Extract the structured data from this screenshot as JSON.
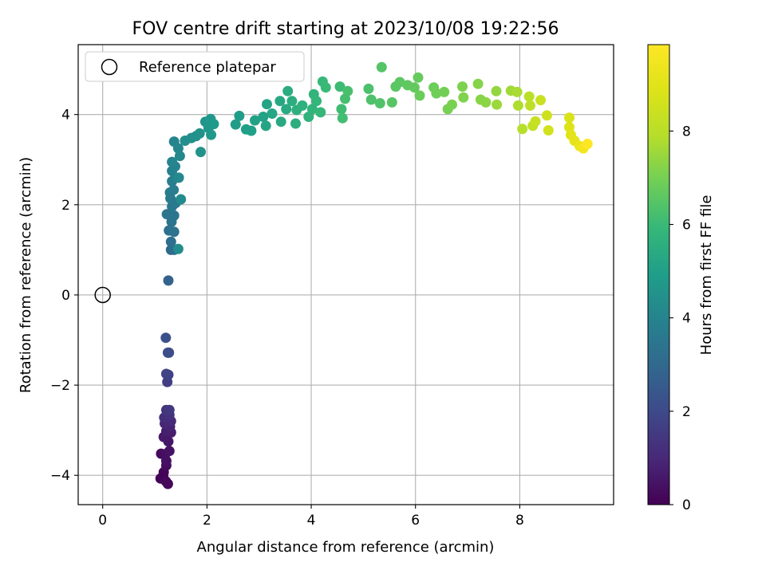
{
  "chart_data": {
    "type": "scatter",
    "title": "FOV centre drift starting at 2023/10/08 19:22:56",
    "xlabel": "Angular distance from reference (arcmin)",
    "ylabel": "Rotation from reference (arcmin)",
    "xlim": [
      -0.47,
      9.8
    ],
    "ylim": [
      -4.65,
      5.55
    ],
    "x_ticks": [
      0,
      2,
      4,
      6,
      8
    ],
    "y_ticks": [
      -4,
      -2,
      0,
      2,
      4
    ],
    "x_tick_labels": [
      "0",
      "2",
      "4",
      "6",
      "8"
    ],
    "y_tick_labels": [
      "−4",
      "−2",
      "0",
      "2",
      "4"
    ],
    "grid": true,
    "legend_position": "top-left",
    "colormap": "viridis",
    "colorbar": {
      "label": "Hours from first FF file",
      "range": [
        0,
        9.85
      ],
      "ticks": [
        0,
        2,
        4,
        6,
        8
      ],
      "tick_labels": [
        "0",
        "2",
        "4",
        "6",
        "8"
      ]
    },
    "series": [
      {
        "name": "Reference platepar",
        "marker": "open-circle",
        "points": [
          {
            "x": 0,
            "y": 0
          }
        ]
      },
      {
        "marker": "filled-circle",
        "points": [
          {
            "x": 1.11,
            "y": -4.07,
            "h": 0.03
          },
          {
            "x": 1.16,
            "y": -4.02,
            "h": 0.06
          },
          {
            "x": 1.17,
            "y": -3.93,
            "h": 0.1
          },
          {
            "x": 1.25,
            "y": -4.19,
            "h": 0.13
          },
          {
            "x": 1.21,
            "y": -4.13,
            "h": 0.16
          },
          {
            "x": 1.12,
            "y": -3.52,
            "h": 0.22
          },
          {
            "x": 1.22,
            "y": -3.78,
            "h": 0.27
          },
          {
            "x": 1.2,
            "y": -3.53,
            "h": 0.32
          },
          {
            "x": 1.22,
            "y": -3.68,
            "h": 0.38
          },
          {
            "x": 1.28,
            "y": -3.46,
            "h": 0.45
          },
          {
            "x": 1.26,
            "y": -3.25,
            "h": 0.55
          },
          {
            "x": 1.17,
            "y": -3.15,
            "h": 0.6
          },
          {
            "x": 1.31,
            "y": -3.05,
            "h": 0.68
          },
          {
            "x": 1.22,
            "y": -3.02,
            "h": 0.75
          },
          {
            "x": 1.29,
            "y": -2.92,
            "h": 0.85
          },
          {
            "x": 1.19,
            "y": -2.85,
            "h": 0.95
          },
          {
            "x": 1.31,
            "y": -2.8,
            "h": 1.05
          },
          {
            "x": 1.18,
            "y": -2.72,
            "h": 1.15
          },
          {
            "x": 1.28,
            "y": -2.66,
            "h": 1.25
          },
          {
            "x": 1.22,
            "y": -2.55,
            "h": 1.35
          },
          {
            "x": 1.28,
            "y": -2.55,
            "h": 1.45
          },
          {
            "x": 1.24,
            "y": -1.93,
            "h": 1.6
          },
          {
            "x": 1.26,
            "y": -1.77,
            "h": 1.7
          },
          {
            "x": 1.22,
            "y": -1.75,
            "h": 1.8
          },
          {
            "x": 1.27,
            "y": -1.28,
            "h": 2.0
          },
          {
            "x": 1.25,
            "y": -1.28,
            "h": 2.1
          },
          {
            "x": 1.21,
            "y": -0.95,
            "h": 2.2
          },
          {
            "x": 1.26,
            "y": 0.32,
            "h": 2.8
          },
          {
            "x": 1.31,
            "y": 1.0,
            "h": 3.0
          },
          {
            "x": 1.37,
            "y": 1.0,
            "h": 3.1
          },
          {
            "x": 1.31,
            "y": 1.18,
            "h": 3.2
          },
          {
            "x": 1.27,
            "y": 1.43,
            "h": 3.3
          },
          {
            "x": 1.37,
            "y": 1.4,
            "h": 3.35
          },
          {
            "x": 1.32,
            "y": 1.62,
            "h": 3.4
          },
          {
            "x": 1.23,
            "y": 1.79,
            "h": 3.45
          },
          {
            "x": 1.37,
            "y": 1.76,
            "h": 3.5
          },
          {
            "x": 1.33,
            "y": 1.96,
            "h": 3.55
          },
          {
            "x": 1.4,
            "y": 2.04,
            "h": 3.6
          },
          {
            "x": 1.3,
            "y": 2.14,
            "h": 3.65
          },
          {
            "x": 1.29,
            "y": 2.27,
            "h": 3.7
          },
          {
            "x": 1.36,
            "y": 2.33,
            "h": 3.75
          },
          {
            "x": 1.33,
            "y": 2.52,
            "h": 3.8
          },
          {
            "x": 1.39,
            "y": 2.6,
            "h": 3.85
          },
          {
            "x": 1.33,
            "y": 2.75,
            "h": 3.9
          },
          {
            "x": 1.39,
            "y": 2.85,
            "h": 3.95
          },
          {
            "x": 1.33,
            "y": 2.95,
            "h": 4.0
          },
          {
            "x": 1.37,
            "y": 3.4,
            "h": 4.05
          },
          {
            "x": 1.45,
            "y": 3.25,
            "h": 4.1
          },
          {
            "x": 1.48,
            "y": 3.08,
            "h": 4.15
          },
          {
            "x": 1.46,
            "y": 2.6,
            "h": 4.2
          },
          {
            "x": 1.5,
            "y": 2.12,
            "h": 4.25
          },
          {
            "x": 1.45,
            "y": 1.02,
            "h": 4.3
          },
          {
            "x": 1.58,
            "y": 3.42,
            "h": 4.35
          },
          {
            "x": 1.7,
            "y": 3.48,
            "h": 4.4
          },
          {
            "x": 1.79,
            "y": 3.52,
            "h": 4.45
          },
          {
            "x": 1.86,
            "y": 3.58,
            "h": 4.5
          },
          {
            "x": 1.88,
            "y": 3.17,
            "h": 4.55
          },
          {
            "x": 1.97,
            "y": 3.84,
            "h": 4.6
          },
          {
            "x": 2.03,
            "y": 3.7,
            "h": 4.65
          },
          {
            "x": 2.07,
            "y": 3.9,
            "h": 4.7
          },
          {
            "x": 2.08,
            "y": 3.55,
            "h": 4.75
          },
          {
            "x": 2.13,
            "y": 3.79,
            "h": 4.8
          },
          {
            "x": 2.55,
            "y": 3.78,
            "h": 4.85
          },
          {
            "x": 2.62,
            "y": 3.97,
            "h": 4.9
          },
          {
            "x": 2.75,
            "y": 3.67,
            "h": 4.95
          },
          {
            "x": 2.85,
            "y": 3.64,
            "h": 5.0
          },
          {
            "x": 2.92,
            "y": 3.87,
            "h": 5.05
          },
          {
            "x": 3.08,
            "y": 3.95,
            "h": 5.1
          },
          {
            "x": 3.15,
            "y": 4.23,
            "h": 5.15
          },
          {
            "x": 3.13,
            "y": 3.75,
            "h": 5.2
          },
          {
            "x": 3.25,
            "y": 4.02,
            "h": 5.25
          },
          {
            "x": 3.4,
            "y": 4.3,
            "h": 5.3
          },
          {
            "x": 3.42,
            "y": 3.84,
            "h": 5.35
          },
          {
            "x": 3.52,
            "y": 4.12,
            "h": 5.4
          },
          {
            "x": 3.55,
            "y": 4.52,
            "h": 5.45
          },
          {
            "x": 3.63,
            "y": 4.3,
            "h": 5.5
          },
          {
            "x": 3.7,
            "y": 3.8,
            "h": 5.55
          },
          {
            "x": 3.72,
            "y": 4.1,
            "h": 5.6
          },
          {
            "x": 3.83,
            "y": 4.2,
            "h": 5.65
          },
          {
            "x": 3.95,
            "y": 3.95,
            "h": 5.7
          },
          {
            "x": 4.02,
            "y": 4.12,
            "h": 5.75
          },
          {
            "x": 4.05,
            "y": 4.45,
            "h": 5.8
          },
          {
            "x": 4.1,
            "y": 4.3,
            "h": 5.85
          },
          {
            "x": 4.18,
            "y": 4.05,
            "h": 5.9
          },
          {
            "x": 4.22,
            "y": 4.73,
            "h": 5.95
          },
          {
            "x": 4.28,
            "y": 4.6,
            "h": 6.0
          },
          {
            "x": 4.55,
            "y": 4.62,
            "h": 6.05
          },
          {
            "x": 4.58,
            "y": 4.12,
            "h": 6.1
          },
          {
            "x": 4.6,
            "y": 3.92,
            "h": 6.15
          },
          {
            "x": 4.65,
            "y": 4.35,
            "h": 6.2
          },
          {
            "x": 4.7,
            "y": 4.52,
            "h": 6.25
          },
          {
            "x": 5.1,
            "y": 4.57,
            "h": 6.3
          },
          {
            "x": 5.15,
            "y": 4.33,
            "h": 6.35
          },
          {
            "x": 5.32,
            "y": 4.25,
            "h": 6.4
          },
          {
            "x": 5.35,
            "y": 5.05,
            "h": 6.45
          },
          {
            "x": 5.55,
            "y": 4.27,
            "h": 6.5
          },
          {
            "x": 5.62,
            "y": 4.62,
            "h": 6.55
          },
          {
            "x": 5.7,
            "y": 4.72,
            "h": 6.6
          },
          {
            "x": 5.85,
            "y": 4.65,
            "h": 6.65
          },
          {
            "x": 5.98,
            "y": 4.6,
            "h": 6.7
          },
          {
            "x": 6.05,
            "y": 4.82,
            "h": 6.75
          },
          {
            "x": 6.08,
            "y": 4.42,
            "h": 6.8
          },
          {
            "x": 6.35,
            "y": 4.6,
            "h": 6.85
          },
          {
            "x": 6.4,
            "y": 4.47,
            "h": 6.9
          },
          {
            "x": 6.55,
            "y": 4.5,
            "h": 6.95
          },
          {
            "x": 6.62,
            "y": 4.12,
            "h": 7.0
          },
          {
            "x": 6.7,
            "y": 4.22,
            "h": 7.05
          },
          {
            "x": 6.9,
            "y": 4.62,
            "h": 7.1
          },
          {
            "x": 6.92,
            "y": 4.38,
            "h": 7.15
          },
          {
            "x": 7.2,
            "y": 4.68,
            "h": 7.2
          },
          {
            "x": 7.25,
            "y": 4.33,
            "h": 7.25
          },
          {
            "x": 7.35,
            "y": 4.27,
            "h": 7.3
          },
          {
            "x": 7.55,
            "y": 4.52,
            "h": 7.4
          },
          {
            "x": 7.56,
            "y": 4.22,
            "h": 7.5
          },
          {
            "x": 7.83,
            "y": 4.53,
            "h": 7.6
          },
          {
            "x": 7.95,
            "y": 4.5,
            "h": 7.7
          },
          {
            "x": 7.97,
            "y": 4.2,
            "h": 7.8
          },
          {
            "x": 8.05,
            "y": 3.68,
            "h": 7.9
          },
          {
            "x": 8.18,
            "y": 4.4,
            "h": 8.0
          },
          {
            "x": 8.2,
            "y": 4.2,
            "h": 8.1
          },
          {
            "x": 8.25,
            "y": 3.75,
            "h": 8.2
          },
          {
            "x": 8.3,
            "y": 3.85,
            "h": 8.3
          },
          {
            "x": 8.4,
            "y": 4.32,
            "h": 8.4
          },
          {
            "x": 8.52,
            "y": 3.98,
            "h": 8.5
          },
          {
            "x": 8.55,
            "y": 3.65,
            "h": 8.6
          },
          {
            "x": 8.95,
            "y": 3.93,
            "h": 8.8
          },
          {
            "x": 8.95,
            "y": 3.72,
            "h": 8.9
          },
          {
            "x": 8.98,
            "y": 3.55,
            "h": 9.0
          },
          {
            "x": 9.05,
            "y": 3.42,
            "h": 9.1
          },
          {
            "x": 9.15,
            "y": 3.3,
            "h": 9.3
          },
          {
            "x": 9.22,
            "y": 3.25,
            "h": 9.5
          },
          {
            "x": 9.3,
            "y": 3.35,
            "h": 9.85
          }
        ]
      }
    ]
  }
}
